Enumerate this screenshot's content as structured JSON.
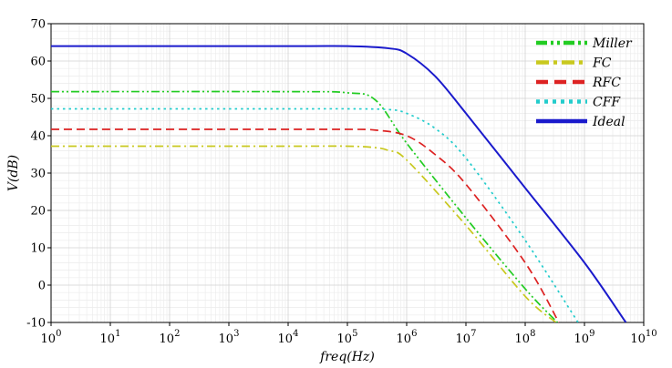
{
  "chart_data": {
    "type": "line",
    "xlabel": "freq(Hz)",
    "ylabel": "V(dB)",
    "x_scale": "log",
    "xlim": [
      1,
      10000000000
    ],
    "ylim": [
      -10,
      70
    ],
    "grid": true,
    "legend_position": "top-right",
    "x_ticks": [
      {
        "value": 1,
        "base": "10",
        "exp": "0"
      },
      {
        "value": 10,
        "base": "10",
        "exp": "1"
      },
      {
        "value": 100,
        "base": "10",
        "exp": "2"
      },
      {
        "value": 1000,
        "base": "10",
        "exp": "3"
      },
      {
        "value": 10000,
        "base": "10",
        "exp": "4"
      },
      {
        "value": 100000,
        "base": "10",
        "exp": "5"
      },
      {
        "value": 1000000,
        "base": "10",
        "exp": "6"
      },
      {
        "value": 10000000,
        "base": "10",
        "exp": "7"
      },
      {
        "value": 100000000,
        "base": "10",
        "exp": "8"
      },
      {
        "value": 1000000000,
        "base": "10",
        "exp": "9"
      },
      {
        "value": 10000000000,
        "base": "10",
        "exp": "10"
      }
    ],
    "y_ticks": [
      "-10",
      "0",
      "10",
      "20",
      "30",
      "40",
      "50",
      "60",
      "70"
    ],
    "series": [
      {
        "name": "Miller",
        "color": "#22cc22",
        "dash": "dashdotdot",
        "x": [
          1,
          10000,
          100000,
          300000,
          1000000,
          10000000,
          100000000,
          350000000
        ],
        "y": [
          51.8,
          51.8,
          51.5,
          49.5,
          38,
          18,
          -1,
          -10
        ]
      },
      {
        "name": "FC",
        "color": "#c8c81e",
        "dash": "dashdot",
        "x": [
          1,
          10000,
          100000,
          300000,
          500000,
          1000000,
          10000000,
          100000000,
          330000000
        ],
        "y": [
          37.2,
          37.2,
          37.2,
          36.8,
          36,
          33.5,
          16,
          -3,
          -10
        ]
      },
      {
        "name": "RFC",
        "color": "#dd2222",
        "dash": "dash",
        "x": [
          1,
          10000,
          100000,
          300000,
          1000000,
          3000000,
          10000000,
          100000000,
          370000000
        ],
        "y": [
          41.7,
          41.7,
          41.7,
          41.5,
          40,
          35,
          27,
          6,
          -10
        ]
      },
      {
        "name": "CFF",
        "color": "#22cccc",
        "dash": "dot",
        "x": [
          1,
          10000,
          100000,
          500000,
          1000000,
          3000000,
          10000000,
          100000000,
          780000000
        ],
        "y": [
          47.2,
          47.2,
          47.2,
          47,
          46,
          42,
          34,
          12,
          -10
        ]
      },
      {
        "name": "Ideal",
        "color": "#1a1acc",
        "dash": "solid",
        "x": [
          1,
          10000,
          100000,
          500000,
          1000000,
          3000000,
          10000000,
          100000000,
          1000000000,
          5000000000
        ],
        "y": [
          64,
          64,
          64,
          63.4,
          62,
          56,
          46,
          26,
          6,
          -10
        ]
      }
    ]
  }
}
